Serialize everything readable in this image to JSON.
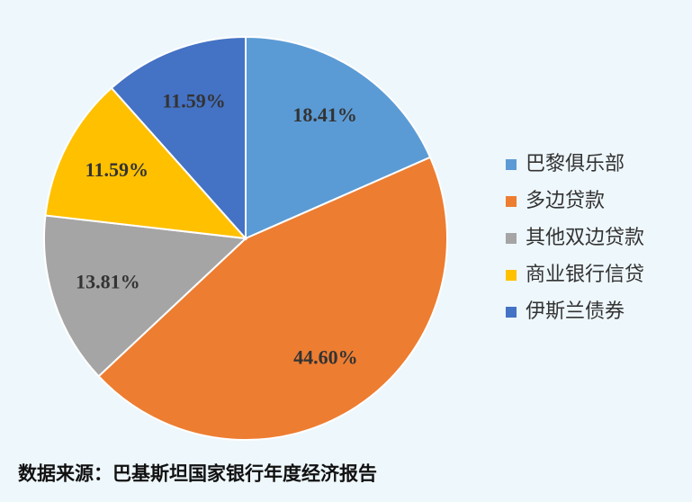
{
  "chart_data": {
    "type": "pie",
    "categories": [
      "巴黎俱乐部",
      "多边贷款",
      "其他双边贷款",
      "商业银行信贷",
      "伊斯兰债券"
    ],
    "values": [
      18.41,
      44.6,
      13.81,
      11.59,
      11.59
    ],
    "value_labels": [
      "18.41%",
      "44.60%",
      "13.81%",
      "11.59%",
      "11.59%"
    ],
    "colors": [
      "#5b9bd5",
      "#ed7d31",
      "#a5a5a5",
      "#ffc000",
      "#4472c4"
    ],
    "legend": "right",
    "source": "数据来源：巴基斯坦国家银行年度经济报告"
  }
}
